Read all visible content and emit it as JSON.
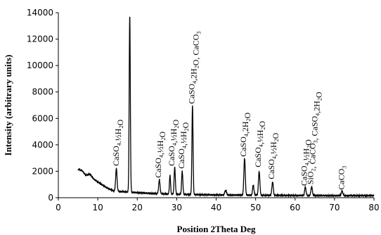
{
  "chart_data": {
    "type": "line",
    "xlabel": "Position 2Theta Deg",
    "ylabel": "Intensity (arbitrary units)",
    "xlim": [
      0,
      80
    ],
    "ylim": [
      0,
      14000
    ],
    "x_ticks": [
      0,
      10,
      20,
      30,
      40,
      50,
      60,
      70,
      80
    ],
    "y_ticks": [
      0,
      2000,
      4000,
      6000,
      8000,
      10000,
      12000,
      14000
    ],
    "grid": false,
    "legend": "none",
    "line_color": "#000000",
    "series": [
      {
        "background": [
          [
            5,
            2150
          ],
          [
            6,
            2050
          ],
          [
            7,
            1700
          ],
          [
            8,
            1800
          ],
          [
            9,
            1400
          ],
          [
            10,
            1200
          ],
          [
            11,
            1000
          ],
          [
            12,
            800
          ],
          [
            13,
            650
          ],
          [
            14,
            520
          ],
          [
            16,
            460
          ],
          [
            18,
            420
          ],
          [
            20,
            380
          ],
          [
            22,
            350
          ],
          [
            24,
            320
          ],
          [
            26,
            300
          ],
          [
            28,
            280
          ],
          [
            30,
            260
          ],
          [
            35,
            230
          ],
          [
            40,
            210
          ],
          [
            45,
            200
          ],
          [
            50,
            190
          ],
          [
            55,
            180
          ],
          [
            60,
            170
          ],
          [
            65,
            165
          ],
          [
            70,
            160
          ],
          [
            75,
            160
          ],
          [
            80,
            160
          ]
        ],
        "peaks": [
          {
            "x": 14.7,
            "y": 2200,
            "w": 0.25
          },
          {
            "x": 18.1,
            "y": 13800,
            "w": 0.2
          },
          {
            "x": 25.6,
            "y": 1350,
            "w": 0.25
          },
          {
            "x": 28.3,
            "y": 1700,
            "w": 0.2
          },
          {
            "x": 29.5,
            "y": 2300,
            "w": 0.22
          },
          {
            "x": 31.4,
            "y": 2000,
            "w": 0.22
          },
          {
            "x": 34.0,
            "y": 7000,
            "w": 0.2
          },
          {
            "x": 42.4,
            "y": 550,
            "w": 0.3
          },
          {
            "x": 47.2,
            "y": 3000,
            "w": 0.25
          },
          {
            "x": 49.4,
            "y": 950,
            "w": 0.25
          },
          {
            "x": 50.9,
            "y": 2000,
            "w": 0.25
          },
          {
            "x": 54.3,
            "y": 1200,
            "w": 0.25
          },
          {
            "x": 62.6,
            "y": 800,
            "w": 0.25
          },
          {
            "x": 64.2,
            "y": 850,
            "w": 0.25
          },
          {
            "x": 71.9,
            "y": 500,
            "w": 0.3
          }
        ]
      }
    ],
    "annotations": [
      {
        "text": "CaSO4.½H2O",
        "x": 15.3,
        "y": 2400
      },
      {
        "text": "CaSO4,½H2O",
        "x": 26.0,
        "y": 1500
      },
      {
        "text": "CaSO4,½H2O",
        "x": 29.4,
        "y": 2400
      },
      {
        "text": "CaSO4,½H2O",
        "x": 31.9,
        "y": 2200
      },
      {
        "text": "CaSO4,2H2O, CaCO3",
        "x": 34.5,
        "y": 7100
      },
      {
        "text": "CaSO4,2H2O",
        "x": 47.6,
        "y": 3100
      },
      {
        "text": "CaSO4,½H2O",
        "x": 51.3,
        "y": 2300
      },
      {
        "text": "CaSO4,½H2O",
        "x": 54.7,
        "y": 1400
      },
      {
        "text": "CaSO4,½H2O",
        "x": 63.0,
        "y": 900
      },
      {
        "text": "SiO2, CaCO3, CaSO4,2H2O",
        "x": 64.6,
        "y": 1000
      },
      {
        "text": "CaCO3",
        "x": 72.4,
        "y": 600
      }
    ]
  }
}
